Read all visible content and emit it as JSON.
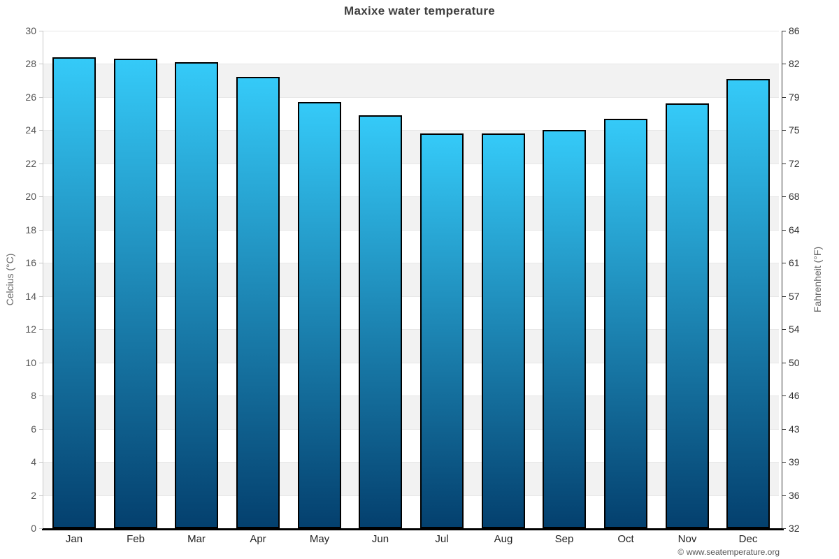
{
  "chart_data": {
    "type": "bar",
    "title": "Maxixe water temperature",
    "categories": [
      "Jan",
      "Feb",
      "Mar",
      "Apr",
      "May",
      "Jun",
      "Jul",
      "Aug",
      "Sep",
      "Oct",
      "Nov",
      "Dec"
    ],
    "series": [
      {
        "name": "Water temperature",
        "unit": "°C",
        "values": [
          28.4,
          28.3,
          28.1,
          27.2,
          25.7,
          24.9,
          23.8,
          23.8,
          24.0,
          24.7,
          25.6,
          27.1
        ]
      }
    ],
    "ylabel_left": "Celcius (°C)",
    "ylabel_right": "Fahrenheit (°F)",
    "ylim_left": [
      0,
      30
    ],
    "ylim_right": [
      32,
      86
    ],
    "yticks_left": [
      30,
      28,
      26,
      24,
      22,
      20,
      18,
      16,
      14,
      12,
      10,
      8,
      6,
      4,
      2,
      0
    ],
    "yticks_right": [
      86,
      82,
      79,
      75,
      72,
      68,
      64,
      61,
      57,
      54,
      50,
      46,
      43,
      39,
      36,
      32
    ],
    "grid": "alternating-bands",
    "legend": "none",
    "colors": {
      "bar_gradient_top": "#35CAF8",
      "bar_gradient_bottom": "#04406E",
      "bar_border": "#000000",
      "band_shade": "#F2F2F2",
      "gridline": "#E7E7E7",
      "left_axis": "#C6C6C6",
      "right_axis": "#333333",
      "bottom_axis": "#000000",
      "title_color": "#3E3E3E",
      "tick_label_left_color": "#555555",
      "tick_label_right_color": "#333333",
      "axis_title_color": "#666666"
    }
  },
  "footer": {
    "copyright": "© www.seatemperature.org"
  }
}
